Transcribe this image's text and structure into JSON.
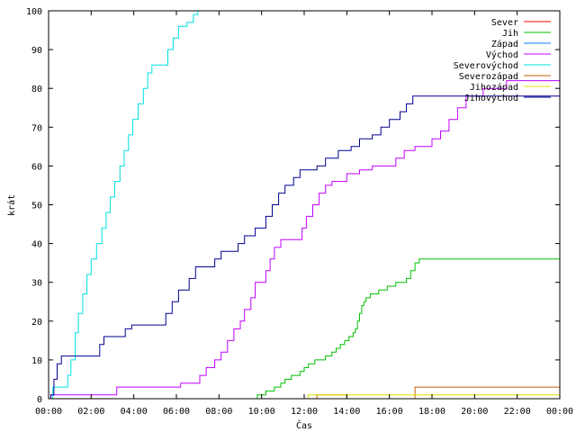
{
  "chart_data": {
    "type": "line",
    "xlabel": "Čas",
    "ylabel": "krát",
    "xlim": [
      0,
      24
    ],
    "ylim": [
      0,
      100
    ],
    "x_ticks": [
      {
        "v": 0,
        "label": "00:00"
      },
      {
        "v": 2,
        "label": "02:00"
      },
      {
        "v": 4,
        "label": "04:00"
      },
      {
        "v": 6,
        "label": "06:00"
      },
      {
        "v": 8,
        "label": "08:00"
      },
      {
        "v": 10,
        "label": "10:00"
      },
      {
        "v": 12,
        "label": "12:00"
      },
      {
        "v": 14,
        "label": "14:00"
      },
      {
        "v": 16,
        "label": "16:00"
      },
      {
        "v": 18,
        "label": "18:00"
      },
      {
        "v": 20,
        "label": "20:00"
      },
      {
        "v": 22,
        "label": "22:00"
      },
      {
        "v": 24,
        "label": "00:00"
      }
    ],
    "y_ticks": [
      {
        "v": 0,
        "label": "0"
      },
      {
        "v": 10,
        "label": "10"
      },
      {
        "v": 20,
        "label": "20"
      },
      {
        "v": 30,
        "label": "30"
      },
      {
        "v": 40,
        "label": "40"
      },
      {
        "v": 50,
        "label": "50"
      },
      {
        "v": 60,
        "label": "60"
      },
      {
        "v": 70,
        "label": "70"
      },
      {
        "v": 80,
        "label": "80"
      },
      {
        "v": 90,
        "label": "90"
      },
      {
        "v": 100,
        "label": "100"
      }
    ],
    "grid": false,
    "legend_position": "top-right",
    "series": [
      {
        "name": "Sever",
        "color": "#ff0000",
        "points": []
      },
      {
        "name": "Jih",
        "color": "#00c000",
        "points": [
          [
            9.8,
            0
          ],
          [
            9.8,
            1
          ],
          [
            10.2,
            1
          ],
          [
            10.2,
            2
          ],
          [
            10.6,
            2
          ],
          [
            10.6,
            3
          ],
          [
            10.9,
            3
          ],
          [
            10.9,
            4
          ],
          [
            11.1,
            4
          ],
          [
            11.1,
            5
          ],
          [
            11.4,
            5
          ],
          [
            11.4,
            6
          ],
          [
            11.8,
            6
          ],
          [
            11.8,
            7
          ],
          [
            12.0,
            7
          ],
          [
            12.0,
            8
          ],
          [
            12.2,
            8
          ],
          [
            12.2,
            9
          ],
          [
            12.5,
            9
          ],
          [
            12.5,
            10
          ],
          [
            13.0,
            10
          ],
          [
            13.0,
            11
          ],
          [
            13.3,
            11
          ],
          [
            13.3,
            12
          ],
          [
            13.5,
            12
          ],
          [
            13.5,
            13
          ],
          [
            13.7,
            13
          ],
          [
            13.7,
            14
          ],
          [
            13.9,
            14
          ],
          [
            13.9,
            15
          ],
          [
            14.1,
            15
          ],
          [
            14.1,
            16
          ],
          [
            14.3,
            16
          ],
          [
            14.3,
            17
          ],
          [
            14.4,
            17
          ],
          [
            14.4,
            18
          ],
          [
            14.5,
            18
          ],
          [
            14.5,
            20
          ],
          [
            14.6,
            20
          ],
          [
            14.6,
            22
          ],
          [
            14.7,
            22
          ],
          [
            14.7,
            24
          ],
          [
            14.8,
            24
          ],
          [
            14.8,
            25
          ],
          [
            14.9,
            25
          ],
          [
            14.9,
            26
          ],
          [
            15.1,
            26
          ],
          [
            15.1,
            27
          ],
          [
            15.5,
            27
          ],
          [
            15.5,
            28
          ],
          [
            15.9,
            28
          ],
          [
            15.9,
            29
          ],
          [
            16.3,
            29
          ],
          [
            16.3,
            30
          ],
          [
            16.8,
            30
          ],
          [
            16.8,
            31
          ],
          [
            17.0,
            31
          ],
          [
            17.0,
            33
          ],
          [
            17.2,
            33
          ],
          [
            17.2,
            35
          ],
          [
            17.4,
            35
          ],
          [
            17.4,
            36
          ],
          [
            24,
            36
          ]
        ]
      },
      {
        "name": "Západ",
        "color": "#0080ff",
        "points": []
      },
      {
        "name": "Východ",
        "color": "#c000ff",
        "points": [
          [
            0.1,
            0
          ],
          [
            0.1,
            1
          ],
          [
            3.2,
            1
          ],
          [
            3.2,
            3
          ],
          [
            6.2,
            3
          ],
          [
            6.2,
            4
          ],
          [
            7.1,
            4
          ],
          [
            7.1,
            6
          ],
          [
            7.4,
            6
          ],
          [
            7.4,
            8
          ],
          [
            7.8,
            8
          ],
          [
            7.8,
            10
          ],
          [
            8.1,
            10
          ],
          [
            8.1,
            12
          ],
          [
            8.4,
            12
          ],
          [
            8.4,
            15
          ],
          [
            8.7,
            15
          ],
          [
            8.7,
            18
          ],
          [
            9.0,
            18
          ],
          [
            9.0,
            20
          ],
          [
            9.2,
            20
          ],
          [
            9.2,
            23
          ],
          [
            9.5,
            23
          ],
          [
            9.5,
            26
          ],
          [
            9.7,
            26
          ],
          [
            9.7,
            30
          ],
          [
            10.2,
            30
          ],
          [
            10.2,
            33
          ],
          [
            10.4,
            33
          ],
          [
            10.4,
            36
          ],
          [
            10.6,
            36
          ],
          [
            10.6,
            39
          ],
          [
            10.9,
            39
          ],
          [
            10.9,
            41
          ],
          [
            11.9,
            41
          ],
          [
            11.9,
            44
          ],
          [
            12.1,
            44
          ],
          [
            12.1,
            47
          ],
          [
            12.4,
            47
          ],
          [
            12.4,
            50
          ],
          [
            12.7,
            50
          ],
          [
            12.7,
            53
          ],
          [
            13.0,
            53
          ],
          [
            13.0,
            55
          ],
          [
            13.3,
            55
          ],
          [
            13.3,
            56
          ],
          [
            14.0,
            56
          ],
          [
            14.0,
            58
          ],
          [
            14.6,
            58
          ],
          [
            14.6,
            59
          ],
          [
            15.2,
            59
          ],
          [
            15.2,
            60
          ],
          [
            16.3,
            60
          ],
          [
            16.3,
            62
          ],
          [
            16.7,
            62
          ],
          [
            16.7,
            64
          ],
          [
            17.2,
            64
          ],
          [
            17.2,
            65
          ],
          [
            18.0,
            65
          ],
          [
            18.0,
            67
          ],
          [
            18.4,
            67
          ],
          [
            18.4,
            69
          ],
          [
            18.8,
            69
          ],
          [
            18.8,
            72
          ],
          [
            19.2,
            72
          ],
          [
            19.2,
            75
          ],
          [
            19.6,
            75
          ],
          [
            19.6,
            78
          ],
          [
            20.4,
            78
          ],
          [
            20.4,
            80
          ],
          [
            21.5,
            80
          ],
          [
            21.5,
            82
          ],
          [
            24,
            82
          ]
        ]
      },
      {
        "name": "Severovýchod",
        "color": "#00e0e0",
        "points": [
          [
            0,
            0
          ],
          [
            0.2,
            0
          ],
          [
            0.2,
            3
          ],
          [
            0.9,
            3
          ],
          [
            0.9,
            6
          ],
          [
            1.05,
            6
          ],
          [
            1.05,
            10
          ],
          [
            1.25,
            10
          ],
          [
            1.25,
            17
          ],
          [
            1.4,
            17
          ],
          [
            1.4,
            22
          ],
          [
            1.6,
            22
          ],
          [
            1.6,
            27
          ],
          [
            1.8,
            27
          ],
          [
            1.8,
            32
          ],
          [
            2.0,
            32
          ],
          [
            2.0,
            36
          ],
          [
            2.25,
            36
          ],
          [
            2.25,
            40
          ],
          [
            2.5,
            40
          ],
          [
            2.5,
            44
          ],
          [
            2.7,
            44
          ],
          [
            2.7,
            48
          ],
          [
            2.9,
            48
          ],
          [
            2.9,
            52
          ],
          [
            3.1,
            52
          ],
          [
            3.1,
            56
          ],
          [
            3.35,
            56
          ],
          [
            3.35,
            60
          ],
          [
            3.55,
            60
          ],
          [
            3.55,
            64
          ],
          [
            3.75,
            64
          ],
          [
            3.75,
            68
          ],
          [
            3.95,
            68
          ],
          [
            3.95,
            72
          ],
          [
            4.2,
            72
          ],
          [
            4.2,
            76
          ],
          [
            4.45,
            76
          ],
          [
            4.45,
            80
          ],
          [
            4.65,
            80
          ],
          [
            4.65,
            84
          ],
          [
            4.85,
            84
          ],
          [
            4.85,
            86
          ],
          [
            5.6,
            86
          ],
          [
            5.6,
            90
          ],
          [
            5.85,
            90
          ],
          [
            5.85,
            93
          ],
          [
            6.1,
            93
          ],
          [
            6.1,
            96
          ],
          [
            6.5,
            96
          ],
          [
            6.5,
            97
          ],
          [
            6.8,
            97
          ],
          [
            6.8,
            99
          ],
          [
            7.0,
            99
          ],
          [
            7.0,
            100
          ]
        ]
      },
      {
        "name": "Severozápad",
        "color": "#c06000",
        "points": [
          [
            12.6,
            0
          ],
          [
            12.6,
            1
          ],
          [
            14.0,
            1
          ],
          [
            14.0,
            0
          ],
          [
            17.2,
            0
          ],
          [
            17.2,
            3
          ],
          [
            24,
            3
          ]
        ]
      },
      {
        "name": "Jihozápad",
        "color": "#e0e000",
        "points": [
          [
            12.2,
            0
          ],
          [
            12.2,
            1
          ],
          [
            24,
            1
          ]
        ]
      },
      {
        "name": "Jihovýchod",
        "color": "#000090",
        "points": [
          [
            0.1,
            0
          ],
          [
            0.1,
            1
          ],
          [
            0.25,
            1
          ],
          [
            0.25,
            5
          ],
          [
            0.4,
            5
          ],
          [
            0.4,
            9
          ],
          [
            0.6,
            9
          ],
          [
            0.6,
            11
          ],
          [
            2.4,
            11
          ],
          [
            2.4,
            14
          ],
          [
            2.6,
            14
          ],
          [
            2.6,
            16
          ],
          [
            3.6,
            16
          ],
          [
            3.6,
            18
          ],
          [
            3.9,
            18
          ],
          [
            3.9,
            19
          ],
          [
            5.5,
            19
          ],
          [
            5.5,
            22
          ],
          [
            5.8,
            22
          ],
          [
            5.8,
            25
          ],
          [
            6.1,
            25
          ],
          [
            6.1,
            28
          ],
          [
            6.6,
            28
          ],
          [
            6.6,
            31
          ],
          [
            6.9,
            31
          ],
          [
            6.9,
            34
          ],
          [
            7.8,
            34
          ],
          [
            7.8,
            36
          ],
          [
            8.1,
            36
          ],
          [
            8.1,
            38
          ],
          [
            8.9,
            38
          ],
          [
            8.9,
            40
          ],
          [
            9.2,
            40
          ],
          [
            9.2,
            42
          ],
          [
            9.7,
            42
          ],
          [
            9.7,
            44
          ],
          [
            10.2,
            44
          ],
          [
            10.2,
            47
          ],
          [
            10.5,
            47
          ],
          [
            10.5,
            50
          ],
          [
            10.8,
            50
          ],
          [
            10.8,
            53
          ],
          [
            11.1,
            53
          ],
          [
            11.1,
            55
          ],
          [
            11.5,
            55
          ],
          [
            11.5,
            57
          ],
          [
            11.8,
            57
          ],
          [
            11.8,
            59
          ],
          [
            12.6,
            59
          ],
          [
            12.6,
            60
          ],
          [
            13.0,
            60
          ],
          [
            13.0,
            62
          ],
          [
            13.6,
            62
          ],
          [
            13.6,
            64
          ],
          [
            14.2,
            64
          ],
          [
            14.2,
            65
          ],
          [
            14.6,
            65
          ],
          [
            14.6,
            67
          ],
          [
            15.2,
            67
          ],
          [
            15.2,
            68
          ],
          [
            15.6,
            68
          ],
          [
            15.6,
            70
          ],
          [
            16.0,
            70
          ],
          [
            16.0,
            72
          ],
          [
            16.5,
            72
          ],
          [
            16.5,
            74
          ],
          [
            16.8,
            74
          ],
          [
            16.8,
            76
          ],
          [
            17.1,
            76
          ],
          [
            17.1,
            78
          ],
          [
            24,
            78
          ]
        ]
      }
    ]
  }
}
